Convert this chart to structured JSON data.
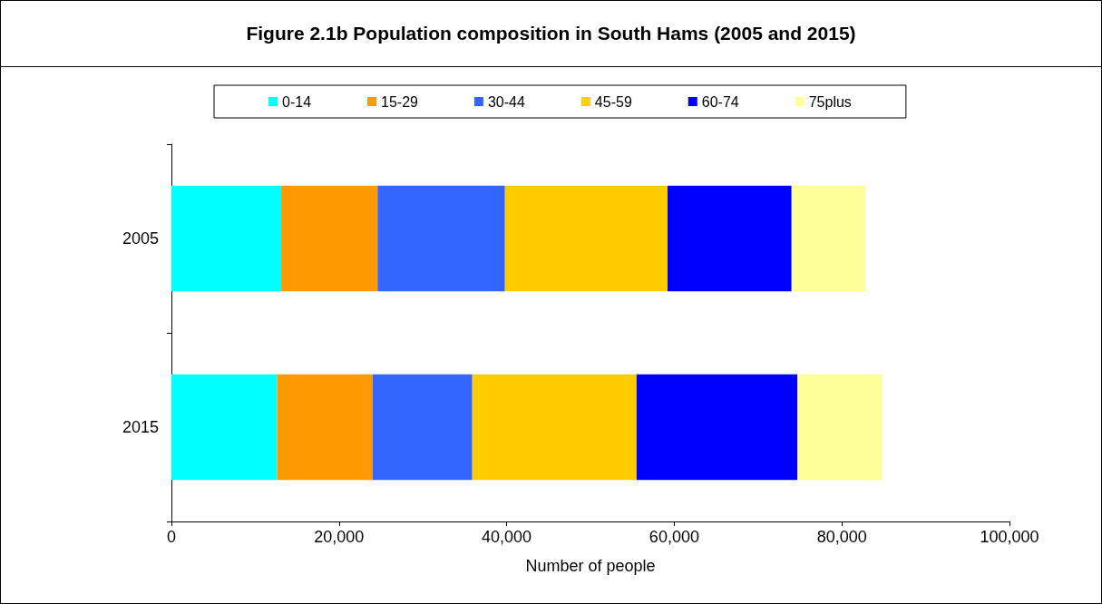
{
  "chart_data": {
    "type": "bar",
    "title": "Figure 2.1b Population composition in South Hams (2005 and 2015)",
    "xlabel": "Number of people",
    "orientation": "horizontal",
    "stacked": true,
    "categories": [
      "2005",
      "2015"
    ],
    "series": [
      {
        "name": "0-14",
        "color": "#00ffff",
        "values": [
          13100,
          12600
        ]
      },
      {
        "name": "15-29",
        "color": "#ff9900",
        "values": [
          11500,
          11400
        ]
      },
      {
        "name": "30-44",
        "color": "#3366ff",
        "values": [
          15200,
          11900
        ]
      },
      {
        "name": "45-59",
        "color": "#ffcc00",
        "values": [
          19400,
          19600
        ]
      },
      {
        "name": "60-74",
        "color": "#0000ff",
        "values": [
          14800,
          19200
        ]
      },
      {
        "name": "75plus",
        "color": "#ffff99",
        "values": [
          8800,
          10100
        ]
      }
    ],
    "xlim": [
      0,
      100000
    ],
    "xticks": [
      0,
      {
        "value": 20000,
        "label": "20,000"
      },
      {
        "value": 40000,
        "label": "40,000"
      },
      {
        "value": 60000,
        "label": "60,000"
      },
      {
        "value": 80000,
        "label": "80,000"
      },
      {
        "value": 100000,
        "label": "100,000"
      }
    ],
    "grid": false,
    "legend": "top"
  }
}
